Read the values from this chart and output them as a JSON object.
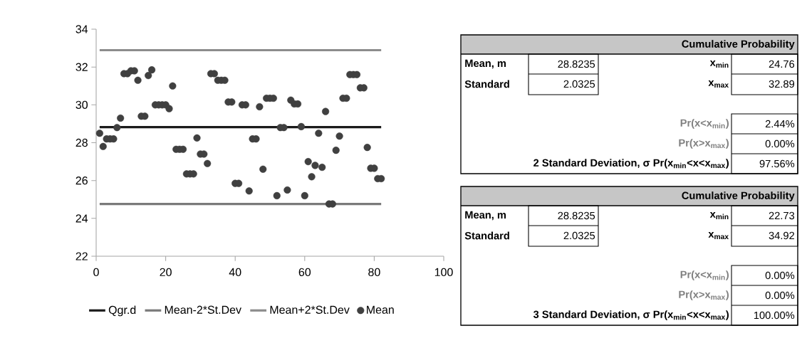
{
  "chart_data": [
    {
      "type": "scatter",
      "xlim": [
        0,
        100
      ],
      "xticks": [
        0,
        20,
        40,
        60,
        80,
        100
      ],
      "ylim": [
        22,
        34
      ],
      "yticks": [
        22,
        24,
        26,
        28,
        30,
        32,
        34
      ],
      "legend": "bottom",
      "x": [
        1,
        2,
        3,
        4,
        5,
        6,
        7,
        8,
        9,
        10,
        11,
        12,
        13,
        14,
        15,
        16,
        17,
        18,
        19,
        20,
        21,
        22,
        23,
        24,
        25,
        26,
        27,
        28,
        29,
        30,
        31,
        32,
        33,
        34,
        35,
        36,
        37,
        38,
        39,
        40,
        41,
        42,
        43,
        44,
        45,
        46,
        47,
        48,
        49,
        50,
        51,
        52,
        53,
        54,
        55,
        56,
        57,
        58,
        59,
        60,
        61,
        62,
        63,
        64,
        65,
        66,
        67,
        68,
        69,
        70,
        71,
        72,
        73,
        74,
        75,
        76,
        77,
        78,
        79,
        80,
        81,
        82
      ],
      "series": [
        {
          "name": "Qgr.d",
          "type": "line",
          "marker": "none",
          "color": "#1a1a1a",
          "values": [
            28.82,
            28.82,
            28.82,
            28.82,
            28.82,
            28.82,
            28.82,
            28.82,
            28.82,
            28.82,
            28.82,
            28.82,
            28.82,
            28.82,
            28.82,
            28.82,
            28.82,
            28.82,
            28.82,
            28.82,
            28.82,
            28.82,
            28.82,
            28.82,
            28.82,
            28.82,
            28.82,
            28.82,
            28.82,
            28.82,
            28.82,
            28.82,
            28.82,
            28.82,
            28.82,
            28.82,
            28.82,
            28.82,
            28.82,
            28.82,
            28.82,
            28.82,
            28.82,
            28.82,
            28.82,
            28.82,
            28.82,
            28.82,
            28.82,
            28.82,
            28.82,
            28.82,
            28.82,
            28.82,
            28.82,
            28.82,
            28.82,
            28.82,
            28.82,
            28.82,
            28.82,
            28.82,
            28.82,
            28.82,
            28.82,
            28.82,
            28.82,
            28.82,
            28.82,
            28.82,
            28.82,
            28.82,
            28.82,
            28.82,
            28.82,
            28.82,
            28.82,
            28.82,
            28.82,
            28.82,
            28.82,
            28.82
          ]
        },
        {
          "name": "Mean-2*St.Dev",
          "type": "line",
          "marker": "none",
          "color": "#7a7a7a",
          "values": [
            24.76,
            24.76,
            24.76,
            24.76,
            24.76,
            24.76,
            24.76,
            24.76,
            24.76,
            24.76,
            24.76,
            24.76,
            24.76,
            24.76,
            24.76,
            24.76,
            24.76,
            24.76,
            24.76,
            24.76,
            24.76,
            24.76,
            24.76,
            24.76,
            24.76,
            24.76,
            24.76,
            24.76,
            24.76,
            24.76,
            24.76,
            24.76,
            24.76,
            24.76,
            24.76,
            24.76,
            24.76,
            24.76,
            24.76,
            24.76,
            24.76,
            24.76,
            24.76,
            24.76,
            24.76,
            24.76,
            24.76,
            24.76,
            24.76,
            24.76,
            24.76,
            24.76,
            24.76,
            24.76,
            24.76,
            24.76,
            24.76,
            24.76,
            24.76,
            24.76,
            24.76,
            24.76,
            24.76,
            24.76,
            24.76,
            24.76,
            24.76,
            24.76,
            24.76,
            24.76,
            24.76,
            24.76,
            24.76,
            24.76,
            24.76,
            24.76,
            24.76,
            24.76,
            24.76,
            24.76,
            24.76,
            24.76
          ]
        },
        {
          "name": "Mean+2*St.Dev",
          "type": "line",
          "marker": "none",
          "color": "#8c8c8c",
          "values": [
            32.89,
            32.89,
            32.89,
            32.89,
            32.89,
            32.89,
            32.89,
            32.89,
            32.89,
            32.89,
            32.89,
            32.89,
            32.89,
            32.89,
            32.89,
            32.89,
            32.89,
            32.89,
            32.89,
            32.89,
            32.89,
            32.89,
            32.89,
            32.89,
            32.89,
            32.89,
            32.89,
            32.89,
            32.89,
            32.89,
            32.89,
            32.89,
            32.89,
            32.89,
            32.89,
            32.89,
            32.89,
            32.89,
            32.89,
            32.89,
            32.89,
            32.89,
            32.89,
            32.89,
            32.89,
            32.89,
            32.89,
            32.89,
            32.89,
            32.89,
            32.89,
            32.89,
            32.89,
            32.89,
            32.89,
            32.89,
            32.89,
            32.89,
            32.89,
            32.89,
            32.89,
            32.89,
            32.89,
            32.89,
            32.89,
            32.89,
            32.89,
            32.89,
            32.89,
            32.89,
            32.89,
            32.89,
            32.89,
            32.89,
            32.89,
            32.89,
            32.89,
            32.89,
            32.89,
            32.89,
            32.89,
            32.89
          ]
        },
        {
          "name": "Mean",
          "type": "scatter",
          "marker": "circle",
          "color": "#404040",
          "values": [
            28.5,
            27.8,
            28.2,
            28.2,
            28.2,
            28.8,
            29.3,
            31.65,
            31.65,
            31.8,
            31.8,
            31.3,
            29.4,
            29.4,
            31.55,
            31.85,
            30.0,
            30.0,
            30.0,
            30.0,
            29.8,
            31.0,
            27.65,
            27.65,
            27.65,
            26.35,
            26.35,
            26.35,
            28.25,
            27.4,
            27.4,
            26.9,
            31.65,
            31.65,
            31.3,
            31.3,
            31.3,
            30.15,
            30.15,
            25.85,
            25.85,
            30.0,
            30.0,
            25.45,
            28.2,
            28.2,
            29.9,
            26.6,
            30.35,
            30.35,
            30.35,
            25.2,
            28.8,
            28.8,
            25.5,
            30.25,
            30.05,
            30.05,
            28.85,
            25.2,
            27.0,
            26.2,
            26.8,
            28.5,
            26.7,
            29.65,
            24.76,
            24.76,
            27.6,
            28.35,
            30.35,
            30.35,
            31.6,
            31.6,
            31.6,
            30.9,
            30.9,
            27.75,
            26.65,
            26.65,
            26.1,
            26.1
          ]
        }
      ]
    },
    {
      "type": "other",
      "title": "Cumulative Probability",
      "annotations": [
        "Mean, m",
        "28.8235",
        "Standard",
        "2.0325",
        "x$_{min}$",
        "24.76",
        "x$_{max}$",
        "32.89",
        "Pr(x<x$_{min}$)",
        "2.44%",
        "Pr(x>x$_{max}$)",
        "0.00%",
        "2 Standard Deviation, σ Pr(x$_{min}$<x<x$_{max}$)",
        "97.56%"
      ]
    },
    {
      "type": "other",
      "title": "Cumulative Probability",
      "annotations": [
        "Mean, m",
        "28.8235",
        "Standard",
        "2.0325",
        "x$_{min}$",
        "22.73",
        "x$_{max}$",
        "34.92",
        "Pr(x<x$_{min}$)",
        "0.00%",
        "Pr(x>x$_{max}$)",
        "0.00%",
        "3 Standard Deviation, σ Pr(x$_{min}$<x<x$_{max}$)",
        "100.00%"
      ]
    }
  ]
}
